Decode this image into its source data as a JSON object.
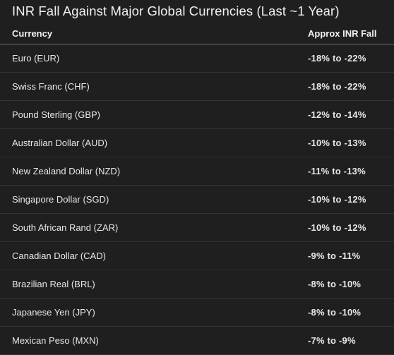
{
  "title": "INR Fall Against Major Global Currencies (Last ~1 Year)",
  "table": {
    "headers": [
      "Currency",
      "Approx INR Fall"
    ],
    "rows": [
      [
        "Euro (EUR)",
        "-18% to -22%"
      ],
      [
        "Swiss Franc (CHF)",
        "-18% to -22%"
      ],
      [
        "Pound Sterling (GBP)",
        "-12% to -14%"
      ],
      [
        "Australian Dollar (AUD)",
        "-10% to -13%"
      ],
      [
        "New Zealand Dollar (NZD)",
        "-11% to -13%"
      ],
      [
        "Singapore Dollar (SGD)",
        "-10% to -12%"
      ],
      [
        "South African Rand (ZAR)",
        "-10% to -12%"
      ],
      [
        "Canadian Dollar (CAD)",
        "-9% to -11%"
      ],
      [
        "Brazilian Real (BRL)",
        "-8% to -10%"
      ],
      [
        "Japanese Yen (JPY)",
        "-8% to -10%"
      ],
      [
        "Mexican Peso (MXN)",
        "-7% to -9%"
      ]
    ]
  }
}
